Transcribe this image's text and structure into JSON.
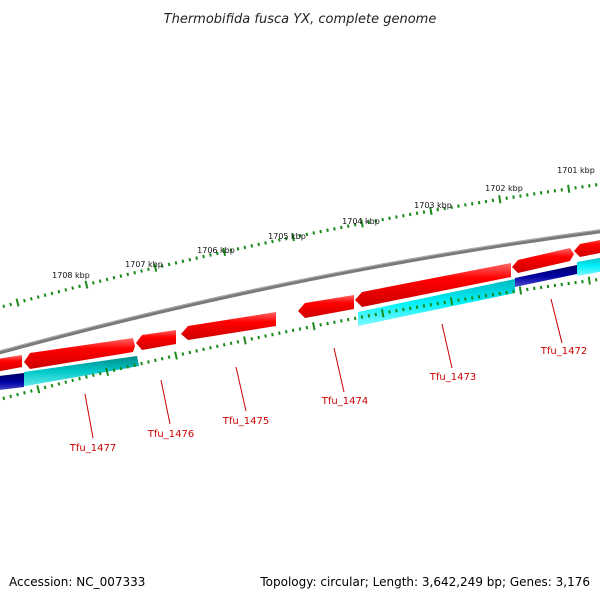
{
  "title": "Thermobifida fusca YX, complete genome",
  "footer": {
    "accession": "Accession: NC_007333",
    "stats": "Topology: circular; Length: 3,642,249 bp; Genes: 3,176"
  },
  "colors": {
    "background": "#ffffff",
    "backbone": "#808080",
    "scale_ticks": "#1a8a1a",
    "forward_genes": "#ff0000",
    "reverse_genes": "#00e5ee",
    "reverse_genes_dark": "#000080",
    "gene_labels": "#cc0000"
  },
  "scale_labels": [
    "1701 kbp",
    "1702 kbp",
    "1703 kbp",
    "1704 kbp",
    "1705 kbp",
    "1706 kbp",
    "1707 kbp",
    "1708 kbp"
  ],
  "gene_labels": [
    "Tfu_1472",
    "Tfu_1473",
    "Tfu_1474",
    "Tfu_1475",
    "Tfu_1476",
    "Tfu_1477"
  ]
}
